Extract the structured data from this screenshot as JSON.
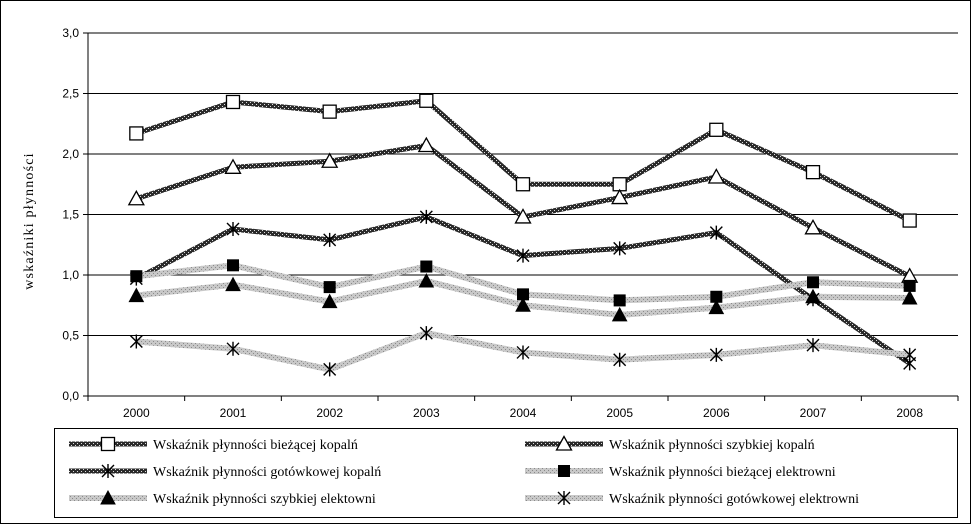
{
  "chart_data": {
    "type": "line",
    "title": "",
    "xlabel": "",
    "ylabel": "wskaźniki płynności",
    "categories": [
      "2000",
      "2001",
      "2002",
      "2003",
      "2004",
      "2005",
      "2006",
      "2007",
      "2008"
    ],
    "ylim": [
      0,
      3.0
    ],
    "yticks": [
      "0,0",
      "0,5",
      "1,0",
      "1,5",
      "2,0",
      "2,5",
      "3,0"
    ],
    "grid": true,
    "legend_position": "bottom",
    "series": [
      {
        "name": "Wskaźnik płynności bieżącej kopalń",
        "values": [
          2.17,
          2.43,
          2.35,
          2.44,
          1.75,
          1.75,
          2.2,
          1.85,
          1.45
        ],
        "marker": "square-open",
        "style": "dark"
      },
      {
        "name": "Wskaźnik płynności szybkiej kopalń",
        "values": [
          1.63,
          1.89,
          1.94,
          2.07,
          1.48,
          1.64,
          1.81,
          1.39,
          0.99
        ],
        "marker": "triangle-open",
        "style": "dark"
      },
      {
        "name": "Wskaźnik płynności gotówkowej kopalń",
        "values": [
          0.97,
          1.38,
          1.29,
          1.48,
          1.16,
          1.22,
          1.35,
          0.8,
          0.27
        ],
        "marker": "star",
        "style": "dark"
      },
      {
        "name": "Wskaźnik płynności bieżącej elektrowni",
        "values": [
          0.99,
          1.08,
          0.9,
          1.07,
          0.84,
          0.79,
          0.82,
          0.94,
          0.91
        ],
        "marker": "square-filled",
        "style": "light"
      },
      {
        "name": "Wskaźnik płynności szybkiej elektowni",
        "values": [
          0.83,
          0.92,
          0.78,
          0.95,
          0.75,
          0.67,
          0.73,
          0.82,
          0.81
        ],
        "marker": "triangle-filled",
        "style": "light"
      },
      {
        "name": "Wskaźnik płynności gotówkowej elektrowni",
        "values": [
          0.45,
          0.39,
          0.22,
          0.52,
          0.36,
          0.3,
          0.34,
          0.42,
          0.34
        ],
        "marker": "star",
        "style": "light"
      }
    ]
  }
}
